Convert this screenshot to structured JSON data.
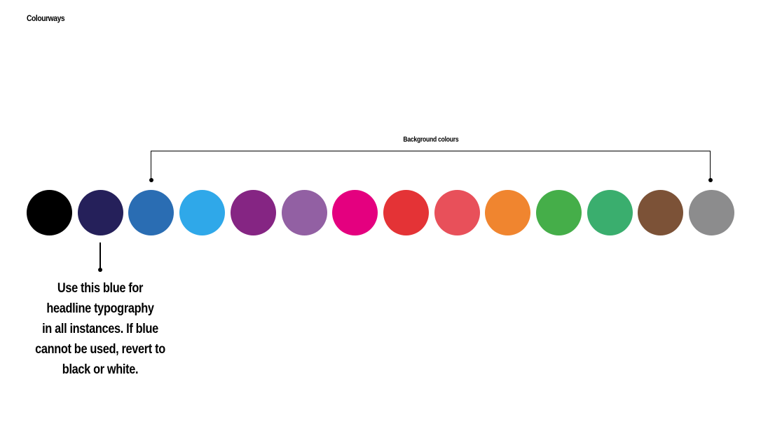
{
  "page": {
    "title": "Colourways"
  },
  "background_group": {
    "label": "Background colours"
  },
  "swatches": [
    {
      "name": "black",
      "color": "#000000"
    },
    {
      "name": "navy",
      "color": "#25205a"
    },
    {
      "name": "blue",
      "color": "#2a6db3"
    },
    {
      "name": "sky-blue",
      "color": "#2fa8e9"
    },
    {
      "name": "purple",
      "color": "#852583"
    },
    {
      "name": "lilac",
      "color": "#9260a3"
    },
    {
      "name": "magenta",
      "color": "#e4007f"
    },
    {
      "name": "red",
      "color": "#e43336"
    },
    {
      "name": "coral",
      "color": "#e8505a"
    },
    {
      "name": "orange",
      "color": "#f0852f"
    },
    {
      "name": "green",
      "color": "#45ae49"
    },
    {
      "name": "sea-green",
      "color": "#3aae6e"
    },
    {
      "name": "brown",
      "color": "#7c5237"
    },
    {
      "name": "grey",
      "color": "#8c8c8d"
    }
  ],
  "callout": {
    "lines": [
      "Use this blue for",
      "headline typography",
      "in all instances. If blue",
      "cannot be used, revert to",
      "black or white."
    ]
  }
}
